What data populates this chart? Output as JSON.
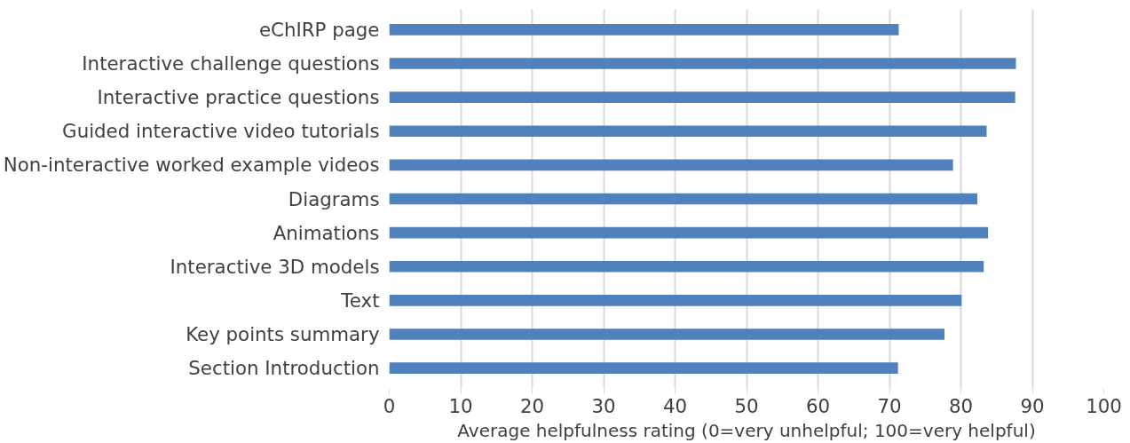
{
  "chart_data": {
    "type": "bar",
    "orientation": "horizontal",
    "xlabel": "Average helpfulness rating (0=very unhelpful; 100=very helpful)",
    "categories": [
      "eChIRP page",
      "Interactive challenge questions",
      "Interactive practice questions",
      "Guided interactive video tutorials",
      "Non-interactive worked example videos",
      "Diagrams",
      "Animations",
      "Interactive 3D models",
      "Text",
      "Key points summary",
      "Section Introduction"
    ],
    "values": [
      71.3,
      87.7,
      87.6,
      83.6,
      78.9,
      82.3,
      83.8,
      83.2,
      80.1,
      77.7,
      71.2
    ],
    "color": "#4f81bd",
    "xlim": [
      0,
      100
    ],
    "xticks": [
      0,
      10,
      20,
      30,
      40,
      50,
      60,
      70,
      80,
      90,
      100
    ],
    "grid": "x"
  }
}
